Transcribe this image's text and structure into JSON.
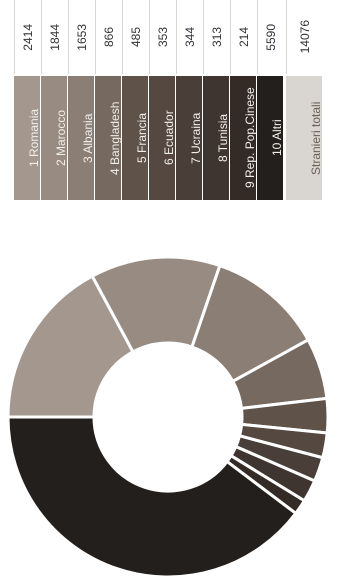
{
  "chart_data": {
    "type": "pie",
    "donut": true,
    "title": "",
    "categories": [
      "1 Romania",
      "2 Marocco",
      "3 Albania",
      "4 Bangladesh",
      "5 Francia",
      "6 Ecuador",
      "7 Ucraina",
      "8 Tunisia",
      "9 Rep. Pop.Cinese",
      "10 Altri"
    ],
    "values": [
      2414,
      1844,
      1653,
      866,
      485,
      353,
      344,
      313,
      214,
      5590
    ],
    "total_label": "Stranieri totali",
    "total_value": 14076,
    "colors": [
      "#a3978e",
      "#988b81",
      "#8b7e74",
      "#76695f",
      "#5e5249",
      "#544840",
      "#4a3f38",
      "#3f3530",
      "#342b27",
      "#231f1c"
    ],
    "total_color": "#d9d5d0",
    "label_text_color": "#f2eee9",
    "total_label_color": "#6b6058"
  }
}
